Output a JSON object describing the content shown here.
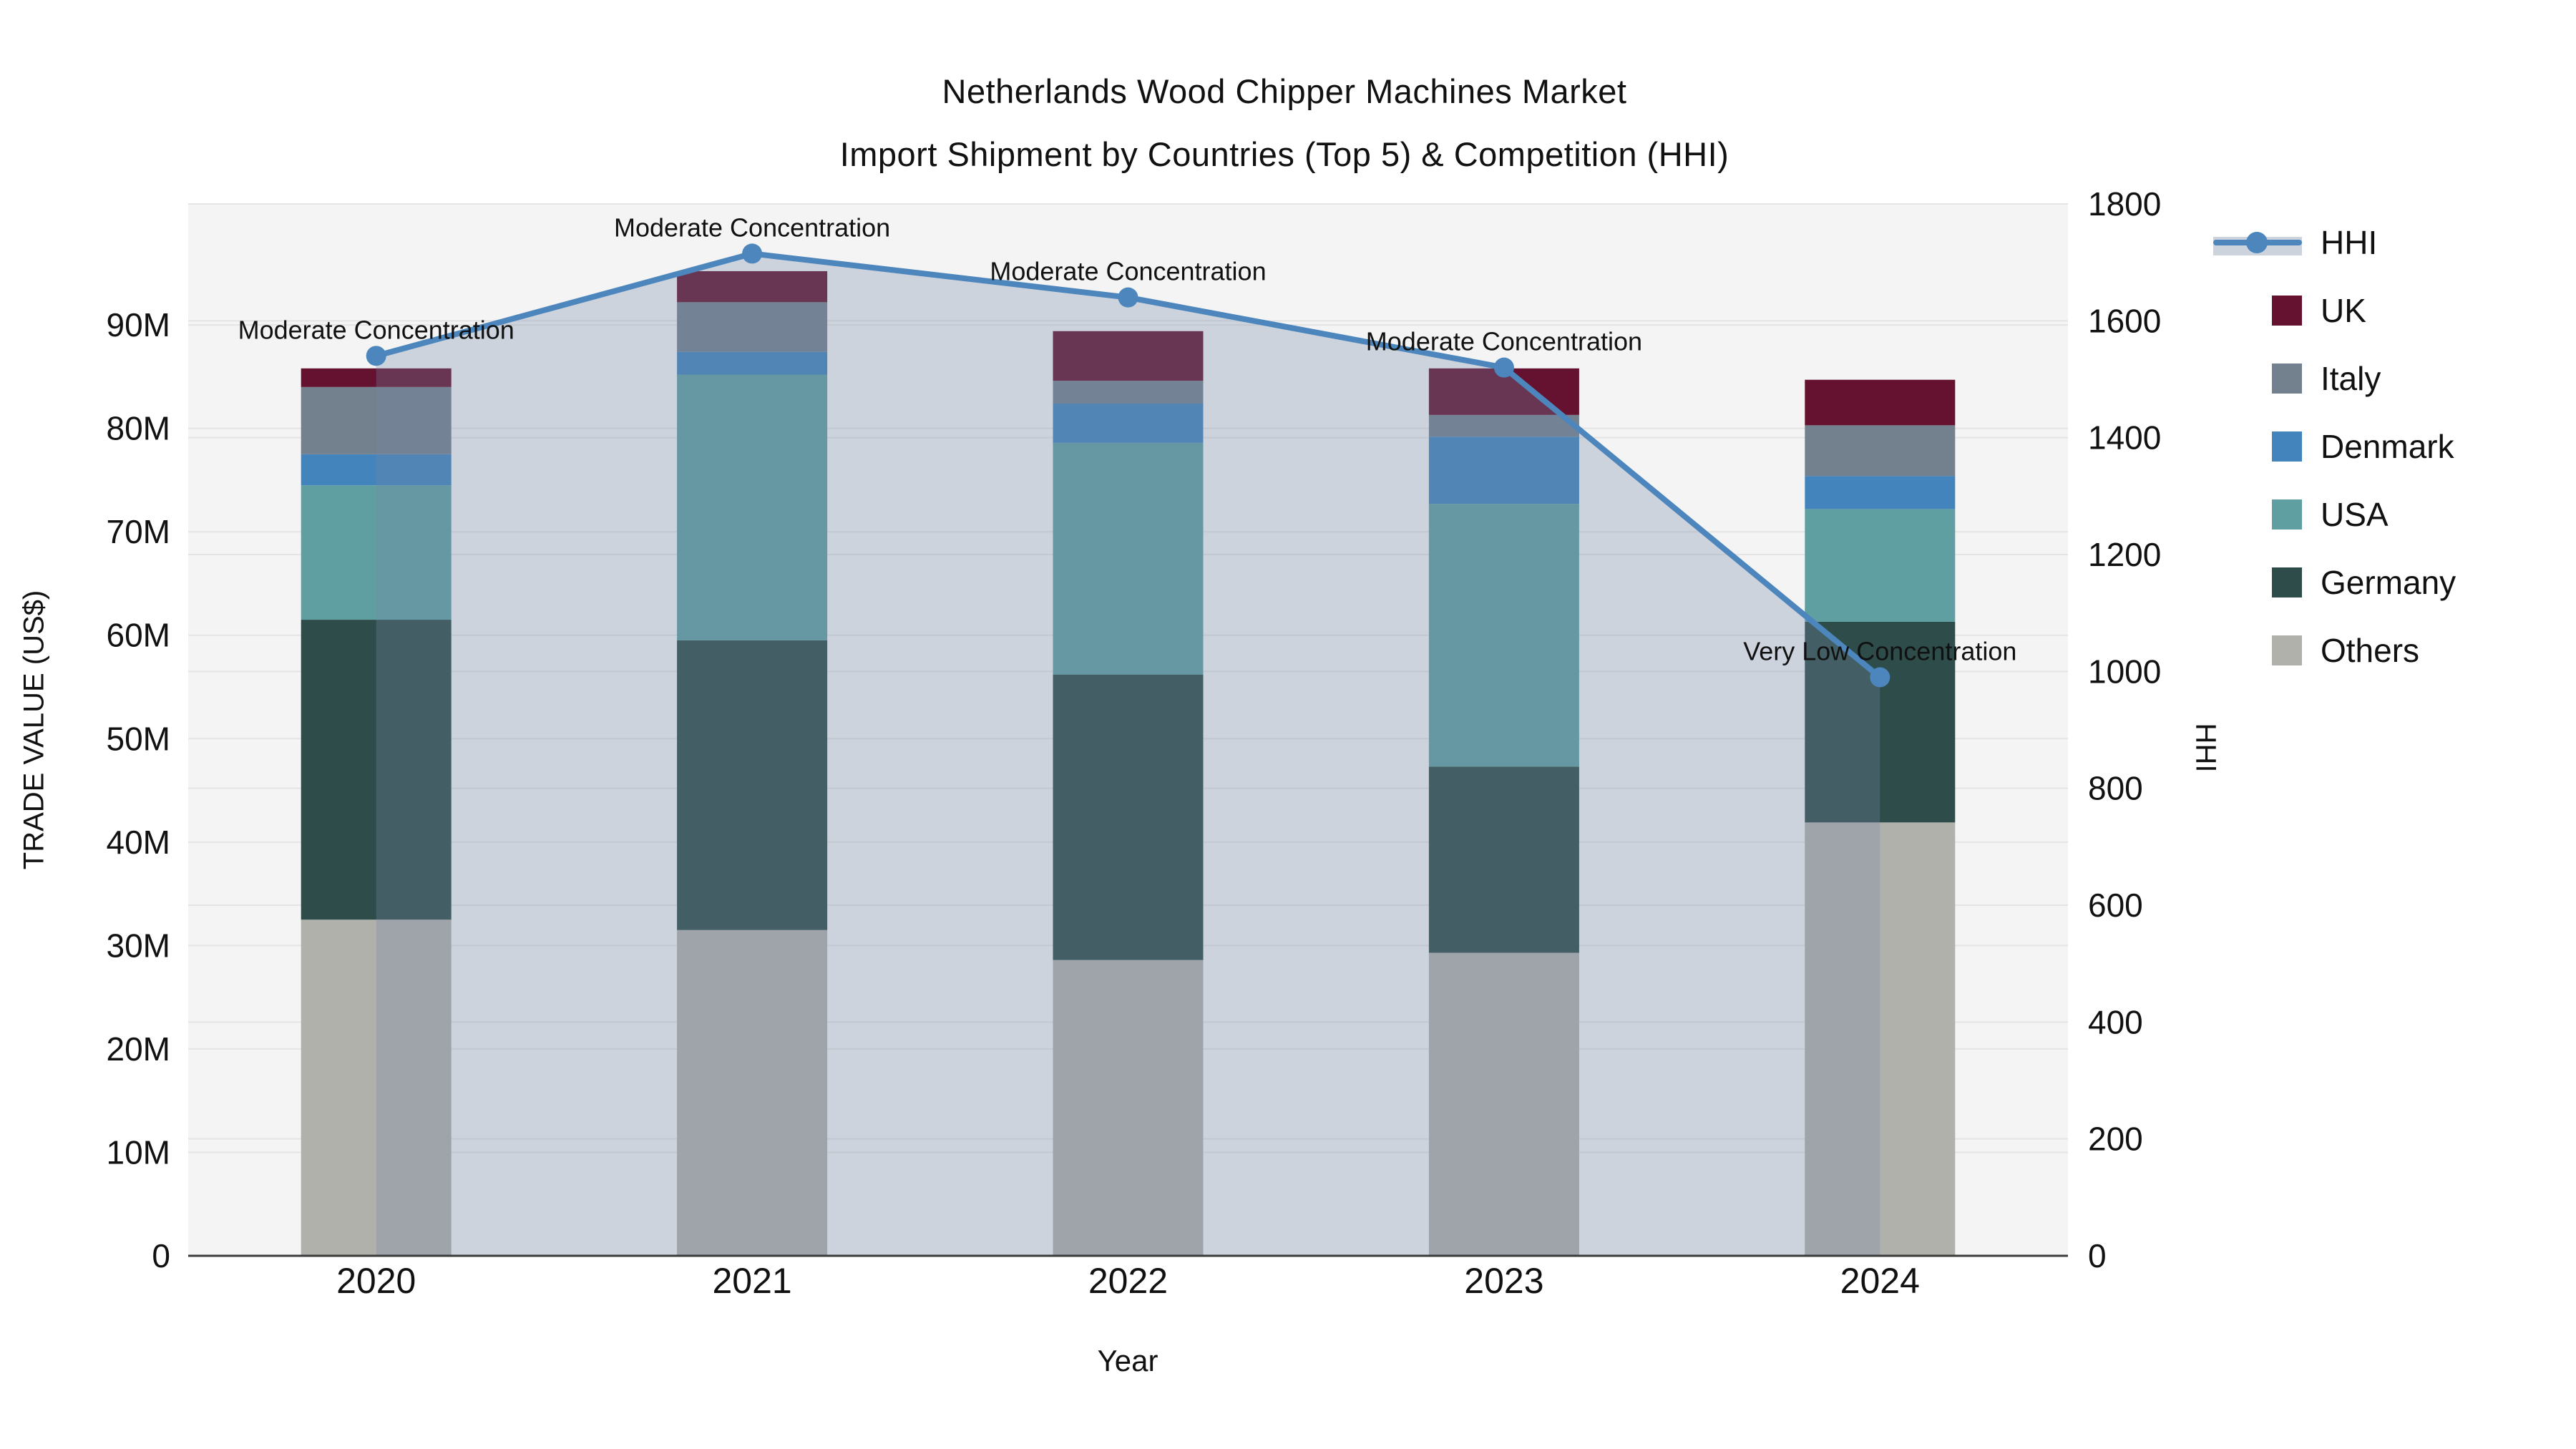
{
  "title": {
    "line1": "Netherlands Wood Chipper Machines Market",
    "line2": "Import Shipment by Countries (Top 5) & Competition (HHI)"
  },
  "chart_data": {
    "type": "stacked-bar-with-line",
    "categories": [
      "2020",
      "2021",
      "2022",
      "2023",
      "2024"
    ],
    "unit": "million US$",
    "bar_series": [
      {
        "name": "Others",
        "color": "#b1b1ac",
        "values": [
          32.5,
          31.5,
          28.6,
          29.3,
          41.9
        ]
      },
      {
        "name": "Germany",
        "color": "#2e4c4a",
        "values": [
          29.0,
          28.0,
          27.6,
          18.0,
          19.4
        ]
      },
      {
        "name": "USA",
        "color": "#5f9fa1",
        "values": [
          13.0,
          25.7,
          22.4,
          25.4,
          10.9
        ]
      },
      {
        "name": "Denmark",
        "color": "#4384bc",
        "values": [
          3.0,
          2.2,
          3.8,
          6.5,
          3.2
        ]
      },
      {
        "name": "Italy",
        "color": "#73808d",
        "values": [
          6.5,
          4.8,
          2.2,
          2.1,
          4.9
        ]
      },
      {
        "name": "UK",
        "color": "#64122f",
        "values": [
          1.8,
          3.0,
          4.8,
          4.5,
          4.4
        ]
      }
    ],
    "bar_totals": [
      85.8,
      95.2,
      89.4,
      85.8,
      84.7
    ],
    "line_series": {
      "name": "HHI",
      "color": "#4c86bc",
      "axis": "right",
      "values": [
        1540,
        1715,
        1640,
        1520,
        990
      ]
    },
    "annotations": [
      {
        "category": "2020",
        "text": "Moderate Concentration"
      },
      {
        "category": "2021",
        "text": "Moderate Concentration"
      },
      {
        "category": "2022",
        "text": "Moderate Concentration"
      },
      {
        "category": "2023",
        "text": "Moderate Concentration"
      },
      {
        "category": "2024",
        "text": "Very Low Concentration"
      }
    ],
    "xlabel": "Year",
    "ylabel_left": "TRADE VALUE (US$)",
    "ylabel_right": "HHI",
    "y_left": {
      "tick_labels": [
        "0",
        "10M",
        "20M",
        "30M",
        "40M",
        "50M",
        "60M",
        "70M",
        "80M",
        "90M"
      ],
      "tick_values": [
        0,
        10,
        20,
        30,
        40,
        50,
        60,
        70,
        80,
        90
      ],
      "max": 101.7
    },
    "y_right": {
      "tick_labels": [
        "0",
        "200",
        "400",
        "600",
        "800",
        "1000",
        "1200",
        "1400",
        "1600",
        "1800"
      ],
      "tick_values": [
        0,
        200,
        400,
        600,
        800,
        1000,
        1200,
        1400,
        1600,
        1800
      ],
      "max": 1800
    },
    "legend_order": [
      "HHI",
      "UK",
      "Italy",
      "Denmark",
      "USA",
      "Germany",
      "Others"
    ],
    "plot_background": "#f4f4f4",
    "gridline_color": "#e4e4e4",
    "area_fill": "rgba(115,135,165,0.30)",
    "annotation_color": "#111111"
  }
}
